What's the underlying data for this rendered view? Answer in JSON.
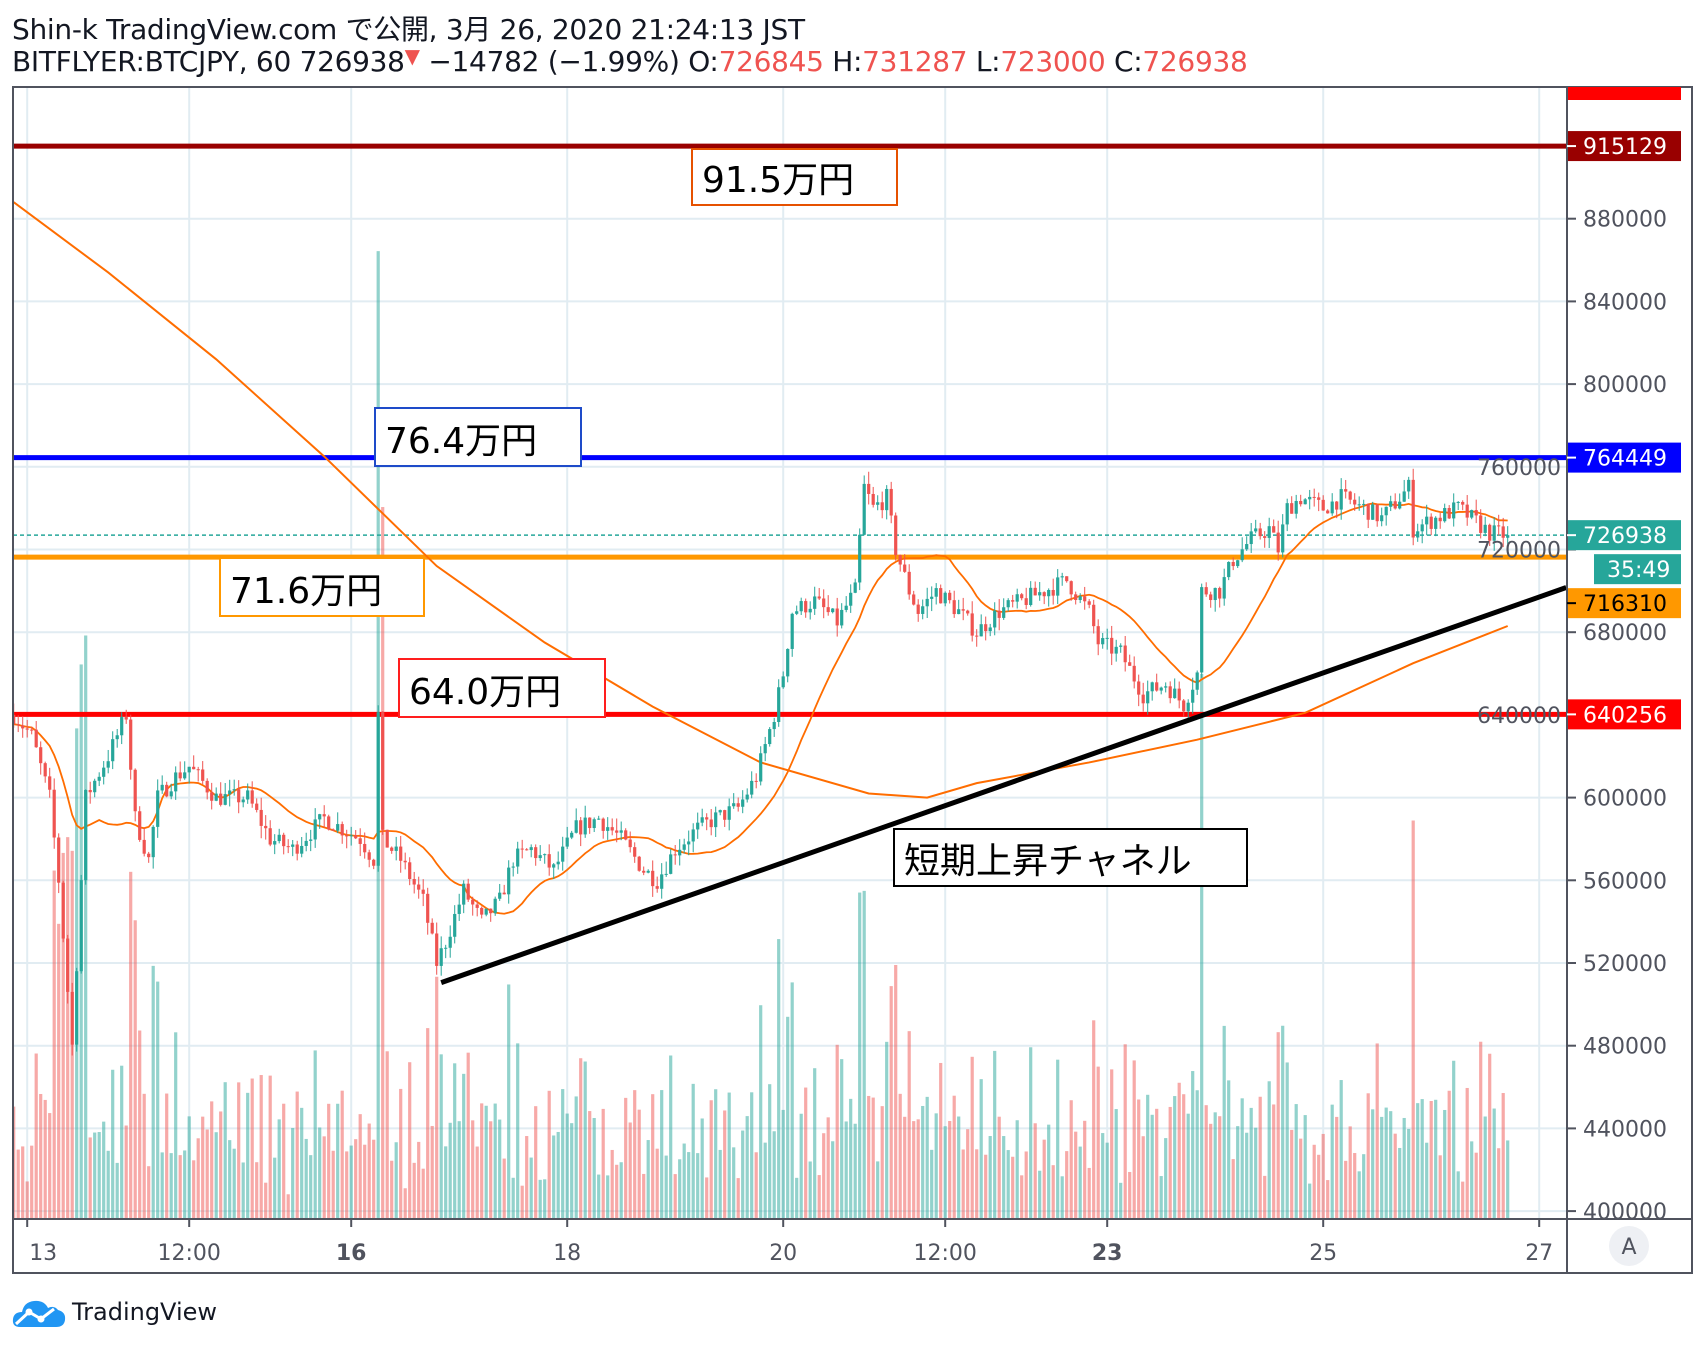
{
  "header": {
    "line1": "Shin-k TradingView.com で公開, 3月 26, 2020 21:24:13 JST",
    "symbol": "BITFLYER:BTCJPY, 60",
    "last": "726938",
    "change": "−14782 (−1.99%)",
    "o_label": "O:",
    "o": "726845",
    "h_label": "H:",
    "h": "731287",
    "l_label": "L:",
    "l": "723000",
    "c_label": "C:",
    "c": "726938",
    "down_arrow_color": "#ef5350"
  },
  "footer": {
    "brand": "TradingView",
    "auto_scale_button": "A"
  },
  "chart_data": {
    "type": "candlestick",
    "interval": "60",
    "colors": {
      "up": "#26a69a",
      "down": "#ef5350",
      "ma": "#ff6d00",
      "grid": "#e1ecf2"
    },
    "ylim": [
      400000,
      940000
    ],
    "y_ticks": [
      "400000",
      "440000",
      "480000",
      "520000",
      "560000",
      "600000",
      "640000",
      "680000",
      "720000",
      "760000",
      "800000",
      "840000",
      "880000"
    ],
    "x_ticks": [
      {
        "t": "2020-03-13T00:00",
        "label": "13",
        "bold": false
      },
      {
        "t": "2020-03-14T12:00",
        "label": "12:00",
        "bold": false
      },
      {
        "t": "2020-03-16T00:00",
        "label": "16",
        "bold": true
      },
      {
        "t": "2020-03-18T00:00",
        "label": "18",
        "bold": false
      },
      {
        "t": "2020-03-20T00:00",
        "label": "20",
        "bold": false
      },
      {
        "t": "2020-03-21T12:00",
        "label": "12:00",
        "bold": false
      },
      {
        "t": "2020-03-23T00:00",
        "label": "23",
        "bold": true
      },
      {
        "t": "2020-03-25T00:00",
        "label": "25",
        "bold": false
      },
      {
        "t": "2020-03-27T00:00",
        "label": "27",
        "bold": false
      }
    ],
    "close_path": [
      [
        "2020-03-12T21:00",
        640000
      ],
      [
        "2020-03-13T01:00",
        630000
      ],
      [
        "2020-03-13T05:00",
        600000
      ],
      [
        "2020-03-13T07:00",
        560000
      ],
      [
        "2020-03-13T10:00",
        480000
      ],
      [
        "2020-03-13T11:00",
        520000
      ],
      [
        "2020-03-13T12:00",
        560000
      ],
      [
        "2020-03-13T13:00",
        600000
      ],
      [
        "2020-03-13T18:00",
        620000
      ],
      [
        "2020-03-13T22:00",
        640000
      ],
      [
        "2020-03-14T00:00",
        590000
      ],
      [
        "2020-03-14T03:00",
        570000
      ],
      [
        "2020-03-14T05:00",
        600000
      ],
      [
        "2020-03-14T09:00",
        610000
      ],
      [
        "2020-03-14T12:00",
        615000
      ],
      [
        "2020-03-14T18:00",
        600000
      ],
      [
        "2020-03-15T01:00",
        600000
      ],
      [
        "2020-03-15T06:00",
        580000
      ],
      [
        "2020-03-15T11:00",
        575000
      ],
      [
        "2020-03-15T18:00",
        590000
      ],
      [
        "2020-03-16T02:00",
        580000
      ],
      [
        "2020-03-16T05:00",
        570000
      ],
      [
        "2020-03-16T06:00",
        640000
      ],
      [
        "2020-03-16T07:00",
        580000
      ],
      [
        "2020-03-16T11:00",
        570000
      ],
      [
        "2020-03-16T16:00",
        550000
      ],
      [
        "2020-03-16T19:00",
        520000
      ],
      [
        "2020-03-16T21:00",
        530000
      ],
      [
        "2020-03-17T01:00",
        555000
      ],
      [
        "2020-03-17T05:00",
        540000
      ],
      [
        "2020-03-17T09:00",
        550000
      ],
      [
        "2020-03-17T12:00",
        570000
      ],
      [
        "2020-03-17T16:00",
        575000
      ],
      [
        "2020-03-17T21:00",
        565000
      ],
      [
        "2020-03-18T02:00",
        585000
      ],
      [
        "2020-03-18T07:00",
        590000
      ],
      [
        "2020-03-18T12:00",
        580000
      ],
      [
        "2020-03-18T17:00",
        565000
      ],
      [
        "2020-03-18T20:00",
        560000
      ],
      [
        "2020-03-19T00:00",
        575000
      ],
      [
        "2020-03-19T05:00",
        585000
      ],
      [
        "2020-03-19T09:00",
        590000
      ],
      [
        "2020-03-19T14:00",
        595000
      ],
      [
        "2020-03-19T18:00",
        610000
      ],
      [
        "2020-03-19T22:00",
        640000
      ],
      [
        "2020-03-20T00:00",
        660000
      ],
      [
        "2020-03-20T02:00",
        690000
      ],
      [
        "2020-03-20T07:00",
        695000
      ],
      [
        "2020-03-20T12:00",
        685000
      ],
      [
        "2020-03-20T16:00",
        700000
      ],
      [
        "2020-03-20T18:00",
        750000
      ],
      [
        "2020-03-20T20:00",
        740000
      ],
      [
        "2020-03-20T23:00",
        745000
      ],
      [
        "2020-03-21T01:00",
        720000
      ],
      [
        "2020-03-21T04:00",
        700000
      ],
      [
        "2020-03-21T06:00",
        690000
      ],
      [
        "2020-03-21T10:00",
        700000
      ],
      [
        "2020-03-21T15:00",
        690000
      ],
      [
        "2020-03-21T19:00",
        680000
      ],
      [
        "2020-03-22T00:00",
        690000
      ],
      [
        "2020-03-22T05:00",
        695000
      ],
      [
        "2020-03-22T10:00",
        700000
      ],
      [
        "2020-03-22T15:00",
        705000
      ],
      [
        "2020-03-22T20:00",
        690000
      ],
      [
        "2020-03-22T22:00",
        675000
      ],
      [
        "2020-03-23T03:00",
        670000
      ],
      [
        "2020-03-23T08:00",
        650000
      ],
      [
        "2020-03-23T13:00",
        655000
      ],
      [
        "2020-03-23T17:00",
        645000
      ],
      [
        "2020-03-23T20:00",
        660000
      ],
      [
        "2020-03-23T21:00",
        700000
      ],
      [
        "2020-03-24T01:00",
        700000
      ],
      [
        "2020-03-24T04:00",
        715000
      ],
      [
        "2020-03-24T08:00",
        725000
      ],
      [
        "2020-03-24T12:00",
        730000
      ],
      [
        "2020-03-24T14:00",
        720000
      ],
      [
        "2020-03-24T16:00",
        740000
      ],
      [
        "2020-03-24T19:00",
        745000
      ],
      [
        "2020-03-25T00:00",
        740000
      ],
      [
        "2020-03-25T04:00",
        745000
      ],
      [
        "2020-03-25T09:00",
        740000
      ],
      [
        "2020-03-25T13:00",
        735000
      ],
      [
        "2020-03-25T17:00",
        745000
      ],
      [
        "2020-03-25T19:00",
        750000
      ],
      [
        "2020-03-25T20:00",
        730000
      ],
      [
        "2020-03-26T01:00",
        735000
      ],
      [
        "2020-03-26T06:00",
        740000
      ],
      [
        "2020-03-26T09:00",
        735000
      ],
      [
        "2020-03-26T13:00",
        728000
      ],
      [
        "2020-03-26T17:00",
        726938
      ]
    ],
    "long_ma": [
      [
        "2020-03-12T21:00",
        888000
      ],
      [
        "2020-03-13T18:00",
        854000
      ],
      [
        "2020-03-14T18:00",
        812000
      ],
      [
        "2020-03-15T18:00",
        765000
      ],
      [
        "2020-03-16T19:00",
        712000
      ],
      [
        "2020-03-17T19:00",
        675000
      ],
      [
        "2020-03-18T19:00",
        644000
      ],
      [
        "2020-03-19T19:00",
        617000
      ],
      [
        "2020-03-20T19:00",
        602000
      ],
      [
        "2020-03-21T08:00",
        600000
      ],
      [
        "2020-03-21T19:00",
        607000
      ],
      [
        "2020-03-22T20:00",
        617000
      ],
      [
        "2020-03-23T20:00",
        628000
      ],
      [
        "2020-03-24T20:00",
        641000
      ],
      [
        "2020-03-25T20:00",
        665000
      ],
      [
        "2020-03-26T17:00",
        683000
      ]
    ],
    "short_ma_period": 20,
    "horizontal_lines": [
      {
        "price": 915129,
        "label": "915129",
        "color": "#990000",
        "text": "#ffffff"
      },
      {
        "price": 764449,
        "label": "764449",
        "color": "#0000ff",
        "text": "#ffffff"
      },
      {
        "price": 716310,
        "label": "716310",
        "color": "#ff9800",
        "text": "#000000"
      },
      {
        "price": 640256,
        "label": "640256",
        "color": "#ff0000",
        "text": "#ffffff"
      }
    ],
    "last_price": {
      "price": 726938,
      "label": "726938",
      "countdown": "35:49",
      "color": "#26a69a"
    },
    "trend_line": {
      "from": [
        "2020-03-16T20:00",
        510500
      ],
      "to": [
        "2020-03-27T06:00",
        701600
      ],
      "color": "#000000"
    },
    "annotations": [
      {
        "text": "91.5万円",
        "border": "#e65100"
      },
      {
        "text": "76.4万円",
        "border": "#1e4bc9"
      },
      {
        "text": "71.6万円",
        "border": "#ff9800"
      },
      {
        "text": "64.0万円",
        "border": "#ff1e1e"
      },
      {
        "text": "短期上昇チャネル",
        "border": "#000000"
      }
    ]
  }
}
